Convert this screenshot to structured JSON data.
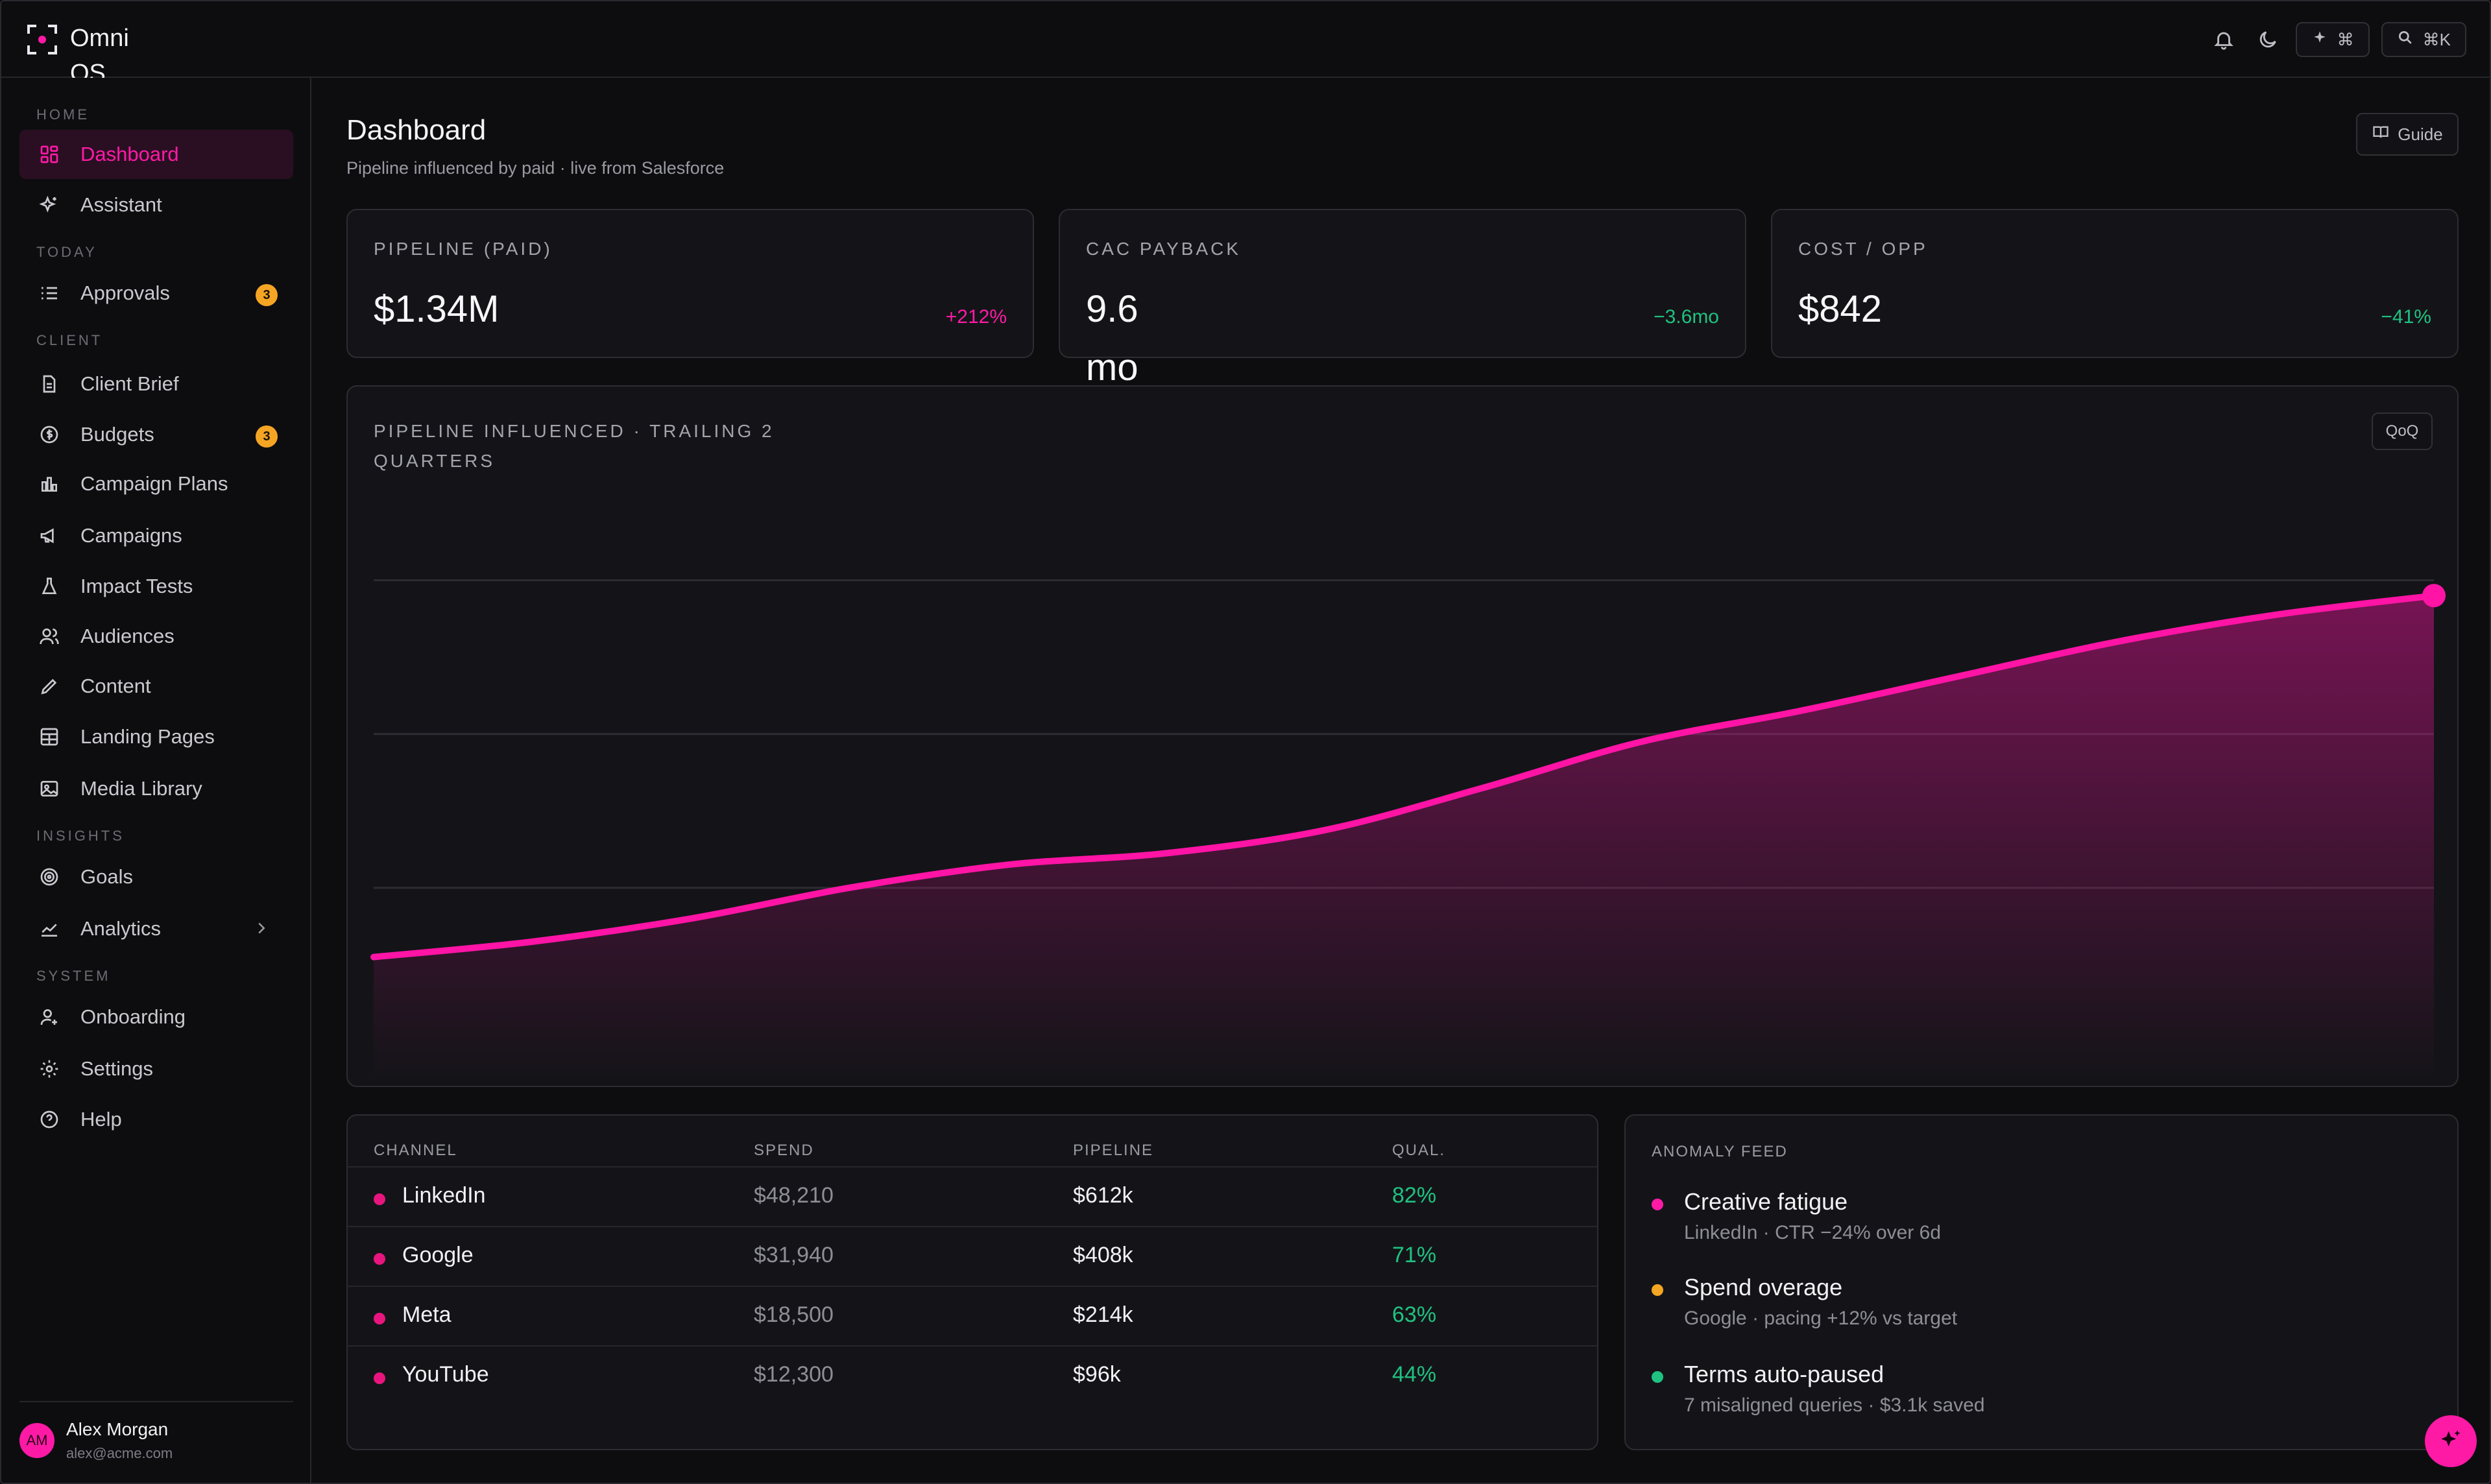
{
  "app": {
    "name": "Omni OS",
    "search_shortcut": "⌘K",
    "ai_shortcut": "⌘"
  },
  "sidebar": {
    "sections": [
      {
        "label": "HOME"
      },
      {
        "label": "TODAY"
      },
      {
        "label": "CLIENT"
      },
      {
        "label": "INSIGHTS"
      },
      {
        "label": "SYSTEM"
      }
    ],
    "items": [
      {
        "label": "Dashboard",
        "icon": "grid-icon",
        "active": true
      },
      {
        "label": "Assistant",
        "icon": "sparkle-icon"
      },
      {
        "label": "Approvals",
        "icon": "checklist-icon",
        "badge": "3"
      },
      {
        "label": "Client Brief",
        "icon": "document-icon"
      },
      {
        "label": "Budgets",
        "icon": "dollar-icon",
        "badge": "3"
      },
      {
        "label": "Campaign Plans",
        "icon": "bar-chart-icon"
      },
      {
        "label": "Campaigns",
        "icon": "megaphone-icon"
      },
      {
        "label": "Impact Tests",
        "icon": "flask-icon"
      },
      {
        "label": "Audiences",
        "icon": "users-icon"
      },
      {
        "label": "Content",
        "icon": "pencil-icon"
      },
      {
        "label": "Landing Pages",
        "icon": "layout-icon"
      },
      {
        "label": "Media Library",
        "icon": "image-icon"
      },
      {
        "label": "Goals",
        "icon": "target-icon"
      },
      {
        "label": "Analytics",
        "icon": "trend-icon"
      },
      {
        "label": "Onboarding",
        "icon": "user-plus-icon"
      },
      {
        "label": "Settings",
        "icon": "gear-icon"
      },
      {
        "label": "Help",
        "icon": "help-icon"
      }
    ],
    "user": {
      "initials": "AM",
      "name": "Alex Morgan",
      "email": "alex@acme.com"
    }
  },
  "page": {
    "title": "Dashboard",
    "subtitle": "Pipeline influenced by paid · live from Salesforce",
    "guide_label": "Guide"
  },
  "kpis": [
    {
      "label": "PIPELINE (PAID)",
      "value": "$1.34M",
      "delta": "+212%",
      "delta_color": "#ff1aa6"
    },
    {
      "label": "CAC PAYBACK",
      "value": "9.6 mo",
      "delta": "−3.6mo",
      "delta_color": "#1fc281"
    },
    {
      "label": "COST / OPP",
      "value": "$842",
      "delta": "−41%",
      "delta_color": "#1fc281"
    }
  ],
  "chart": {
    "title": "PIPELINE INFLUENCED · TRAILING 2 QUARTERS",
    "toggle_label": "QoQ",
    "color": "#ff14a6"
  },
  "chart_data": {
    "type": "area",
    "title": "PIPELINE INFLUENCED · TRAILING 2 QUARTERS",
    "x": [
      0,
      1,
      2,
      3,
      4,
      5,
      6,
      7,
      8,
      9,
      10,
      11,
      12,
      13
    ],
    "series": [
      {
        "values": [
          0.22,
          0.26,
          0.32,
          0.4,
          0.46,
          0.49,
          0.55,
          0.66,
          0.78,
          0.86,
          0.95,
          1.04,
          1.11,
          1.16
        ]
      }
    ],
    "ylim": [
      0,
      1.4
    ],
    "grid": true,
    "xlabel": "",
    "ylabel": ""
  },
  "table": {
    "headers": [
      "CHANNEL",
      "SPEND",
      "PIPELINE",
      "QUAL."
    ],
    "rows": [
      {
        "channel": "LinkedIn",
        "spend": "$48,210",
        "pipeline": "$612k",
        "qual": "82%"
      },
      {
        "channel": "Google",
        "spend": "$31,940",
        "pipeline": "$408k",
        "qual": "71%"
      },
      {
        "channel": "Meta",
        "spend": "$18,500",
        "pipeline": "$214k",
        "qual": "63%"
      },
      {
        "channel": "YouTube",
        "spend": "$12,300",
        "pipeline": "$96k",
        "qual": "44%"
      }
    ]
  },
  "anomaly": {
    "title": "ANOMALY FEED",
    "items": [
      {
        "title": "Creative fatigue",
        "detail": "LinkedIn · CTR −24% over 6d",
        "color": "#ff1aa6"
      },
      {
        "title": "Spend overage",
        "detail": "Google · pacing +12% vs target",
        "color": "#f5a524"
      },
      {
        "title": "Terms auto-paused",
        "detail": "7 misaligned queries · $3.1k saved",
        "color": "#1fc281"
      }
    ]
  }
}
